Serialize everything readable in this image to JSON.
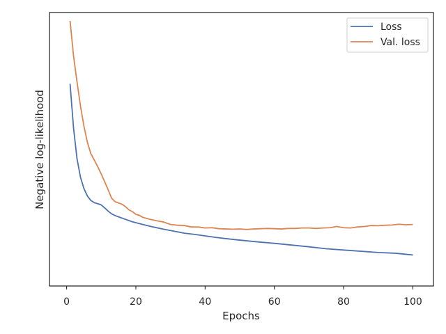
{
  "chart_data": {
    "type": "line",
    "title": "",
    "xlabel": "Epochs",
    "ylabel": "Negative log-likelihood",
    "xlim": [
      -4.95,
      105.95
    ],
    "ylim": [
      0,
      1
    ],
    "x_ticks": [
      0,
      20,
      40,
      60,
      80,
      100
    ],
    "y_ticks_shown": false,
    "grid": false,
    "legend_position": "top-right",
    "series": [
      {
        "name": "Loss",
        "color": "#4c72b0",
        "points": [
          [
            1,
            0.746
          ],
          [
            2,
            0.567
          ],
          [
            3,
            0.444
          ],
          [
            4,
            0.369
          ],
          [
            5,
            0.323
          ],
          [
            6,
            0.293
          ],
          [
            7,
            0.275
          ],
          [
            8,
            0.266
          ],
          [
            9,
            0.262
          ],
          [
            10,
            0.257
          ],
          [
            11,
            0.245
          ],
          [
            12,
            0.232
          ],
          [
            13,
            0.221
          ],
          [
            14,
            0.214
          ],
          [
            15,
            0.209
          ],
          [
            17,
            0.199
          ],
          [
            19,
            0.189
          ],
          [
            22,
            0.178
          ],
          [
            25,
            0.168
          ],
          [
            28,
            0.159
          ],
          [
            31,
            0.151
          ],
          [
            34,
            0.143
          ],
          [
            37,
            0.138
          ],
          [
            40,
            0.132
          ],
          [
            43,
            0.126
          ],
          [
            46,
            0.121
          ],
          [
            50,
            0.115
          ],
          [
            55,
            0.108
          ],
          [
            60,
            0.102
          ],
          [
            65,
            0.095
          ],
          [
            70,
            0.088
          ],
          [
            75,
            0.08
          ],
          [
            80,
            0.075
          ],
          [
            85,
            0.07
          ],
          [
            90,
            0.065
          ],
          [
            95,
            0.062
          ],
          [
            100,
            0.055
          ]
        ]
      },
      {
        "name": "Val. loss",
        "color": "#dd8452",
        "points": [
          [
            1,
            1.0
          ],
          [
            2,
            0.858
          ],
          [
            3,
            0.754
          ],
          [
            4,
            0.657
          ],
          [
            5,
            0.575
          ],
          [
            6,
            0.51
          ],
          [
            7,
            0.464
          ],
          [
            8,
            0.438
          ],
          [
            9,
            0.411
          ],
          [
            10,
            0.382
          ],
          [
            11,
            0.35
          ],
          [
            12,
            0.318
          ],
          [
            13,
            0.284
          ],
          [
            14,
            0.27
          ],
          [
            15,
            0.265
          ],
          [
            16,
            0.26
          ],
          [
            17,
            0.25
          ],
          [
            18,
            0.237
          ],
          [
            19,
            0.23
          ],
          [
            20,
            0.219
          ],
          [
            21,
            0.215
          ],
          [
            22,
            0.207
          ],
          [
            24,
            0.199
          ],
          [
            26,
            0.193
          ],
          [
            28,
            0.188
          ],
          [
            30,
            0.178
          ],
          [
            32,
            0.175
          ],
          [
            34,
            0.174
          ],
          [
            36,
            0.168
          ],
          [
            38,
            0.168
          ],
          [
            40,
            0.164
          ],
          [
            42,
            0.165
          ],
          [
            44,
            0.161
          ],
          [
            46,
            0.16
          ],
          [
            48,
            0.159
          ],
          [
            50,
            0.16
          ],
          [
            52,
            0.158
          ],
          [
            54,
            0.16
          ],
          [
            56,
            0.161
          ],
          [
            58,
            0.162
          ],
          [
            60,
            0.161
          ],
          [
            62,
            0.16
          ],
          [
            64,
            0.162
          ],
          [
            66,
            0.162
          ],
          [
            68,
            0.164
          ],
          [
            70,
            0.164
          ],
          [
            72,
            0.162
          ],
          [
            74,
            0.164
          ],
          [
            76,
            0.165
          ],
          [
            78,
            0.17
          ],
          [
            80,
            0.165
          ],
          [
            82,
            0.164
          ],
          [
            84,
            0.168
          ],
          [
            86,
            0.17
          ],
          [
            88,
            0.174
          ],
          [
            90,
            0.173
          ],
          [
            92,
            0.175
          ],
          [
            94,
            0.176
          ],
          [
            96,
            0.179
          ],
          [
            98,
            0.177
          ],
          [
            100,
            0.178
          ]
        ]
      }
    ]
  }
}
